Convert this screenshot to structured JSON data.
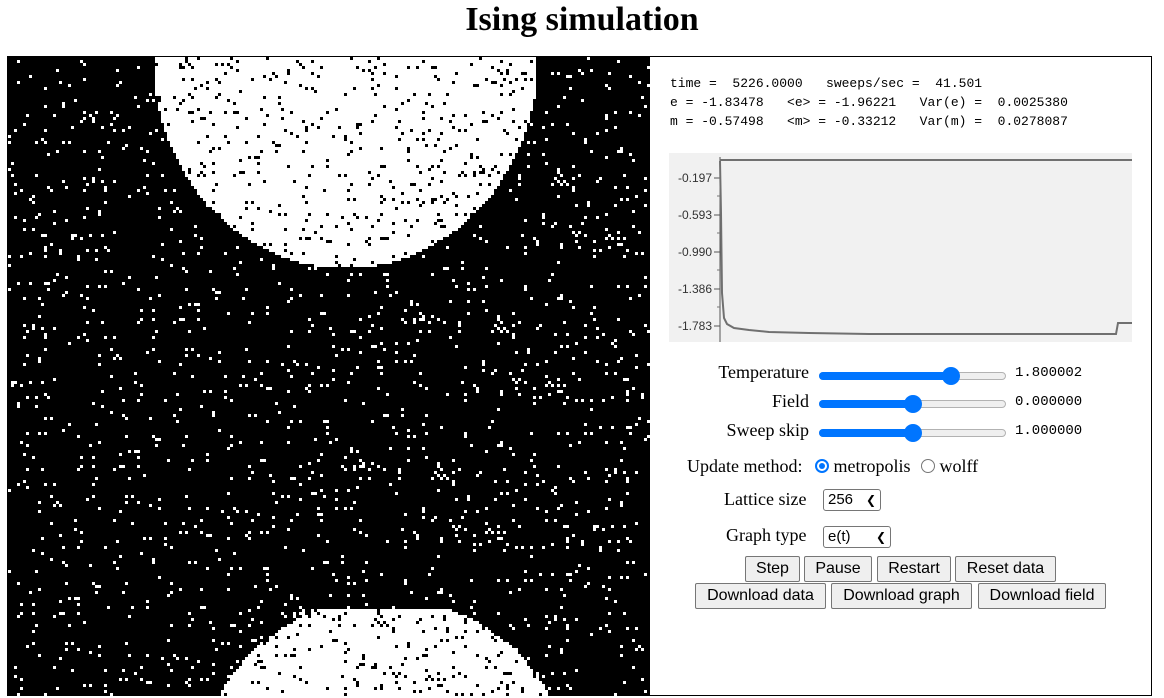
{
  "page": {
    "title": "Ising simulation"
  },
  "readout": {
    "line1": "time =  5226.0000   sweeps/sec =  41.501",
    "line2": "e = -1.83478   <e> = -1.96221   Var(e) =  0.0025380",
    "line3": "m = -0.57498   <m> = -0.33212   Var(m) =  0.0278087"
  },
  "graph": {
    "y_ticks": [
      "-0.197",
      "-0.593",
      "-0.990",
      "-1.386",
      "-1.783"
    ],
    "line_color": "#707070"
  },
  "controls": {
    "temperature": {
      "label": "Temperature",
      "value": "1.800002",
      "fraction": 0.73
    },
    "field": {
      "label": "Field",
      "value": "0.000000",
      "fraction": 0.5
    },
    "sweep_skip": {
      "label": "Sweep skip",
      "value": "1.000000",
      "fraction": 0.5
    },
    "update_method": {
      "label": "Update method:",
      "options": [
        "metropolis",
        "wolff"
      ],
      "selected": "metropolis"
    },
    "lattice_size": {
      "label": "Lattice size",
      "value": "256"
    },
    "graph_type": {
      "label": "Graph type",
      "value": "e(t)"
    }
  },
  "buttons": {
    "step": "Step",
    "pause": "Pause",
    "restart": "Restart",
    "reset_data": "Reset data",
    "download_data": "Download data",
    "download_graph": "Download graph",
    "download_field": "Download field"
  },
  "colors": {
    "accent": "#0075ff",
    "spin_up": "#ffffff",
    "spin_down": "#000000"
  }
}
